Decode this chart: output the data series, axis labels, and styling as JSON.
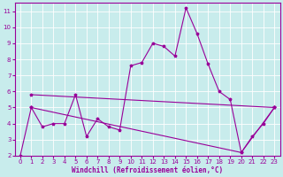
{
  "xlabel": "Windchill (Refroidissement éolien,°C)",
  "background_color": "#c8ecec",
  "grid_color": "#ffffff",
  "line_color": "#990099",
  "xlim": [
    -0.5,
    23.5
  ],
  "ylim": [
    2,
    11.5
  ],
  "xticks": [
    0,
    1,
    2,
    3,
    4,
    5,
    6,
    7,
    8,
    9,
    10,
    11,
    12,
    13,
    14,
    15,
    16,
    17,
    18,
    19,
    20,
    21,
    22,
    23
  ],
  "yticks": [
    2,
    3,
    4,
    5,
    6,
    7,
    8,
    9,
    10,
    11
  ],
  "series1_x": [
    0,
    1,
    2,
    3,
    4,
    5,
    6,
    7,
    8,
    9,
    10,
    11,
    12,
    13,
    14,
    15,
    16,
    17,
    18,
    19,
    20,
    21,
    22,
    23
  ],
  "series1_y": [
    2.0,
    5.0,
    3.8,
    4.0,
    4.0,
    5.8,
    3.2,
    4.3,
    3.8,
    3.6,
    7.6,
    7.8,
    9.0,
    8.8,
    8.2,
    11.2,
    9.6,
    7.7,
    6.0,
    5.5,
    2.2,
    3.2,
    4.0,
    5.0
  ],
  "series2_x": [
    1,
    23
  ],
  "series2_y": [
    5.8,
    5.0
  ],
  "series3_x": [
    1,
    20,
    23
  ],
  "series3_y": [
    5.0,
    2.2,
    5.0
  ],
  "xlabel_fontsize": 5.5,
  "tick_fontsize": 5,
  "linewidth": 0.8,
  "markersize": 2.5
}
